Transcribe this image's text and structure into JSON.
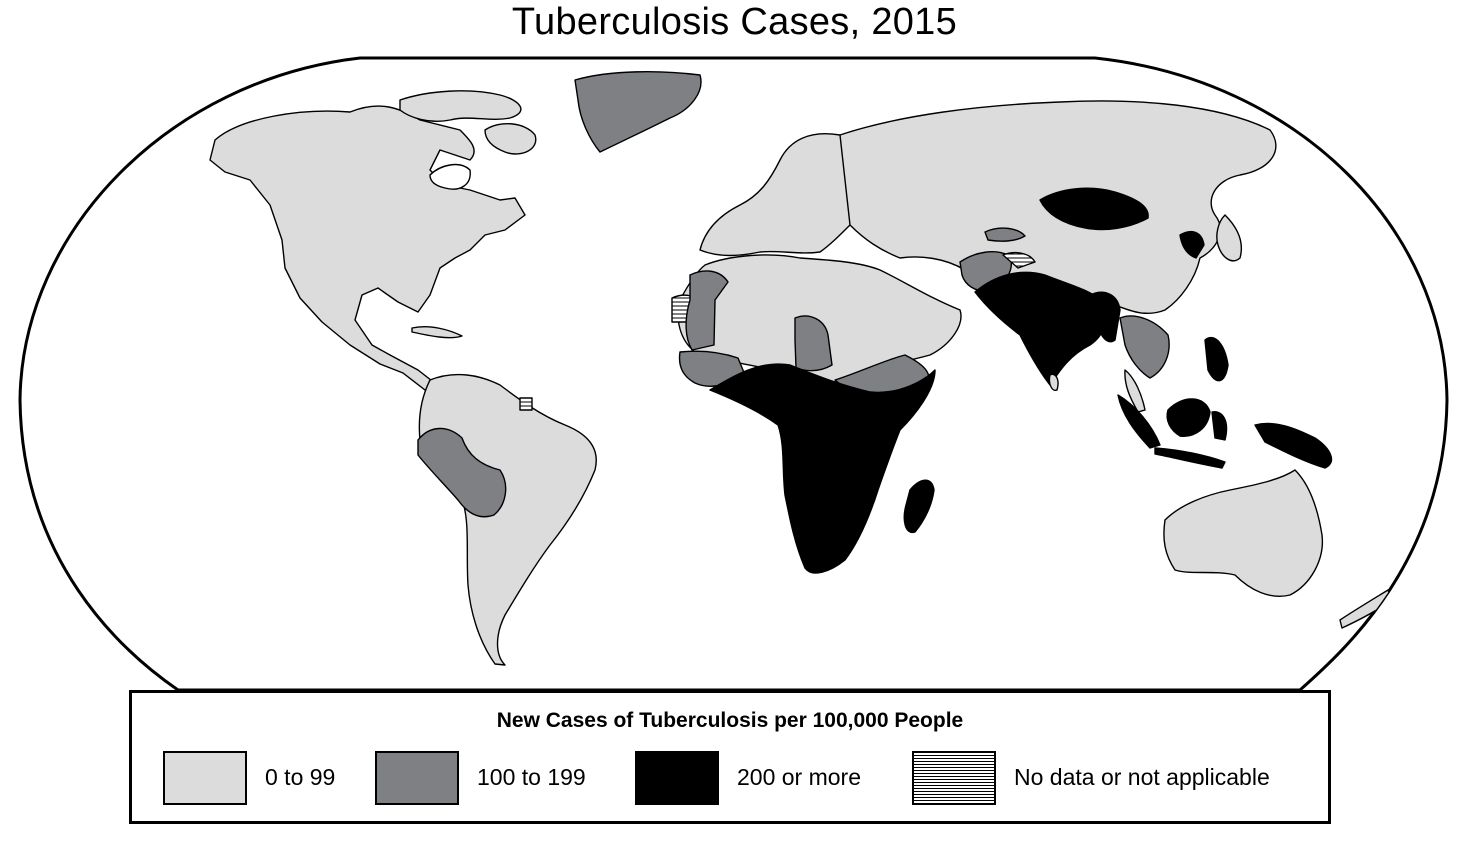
{
  "title": "Tuberculosis Cases, 2015",
  "legend": {
    "title": "New Cases of Tuberculosis per 100,000 People",
    "items": [
      {
        "label": "0 to 99",
        "color": "#dcdcdd",
        "pattern": "solid"
      },
      {
        "label": "100 to 199",
        "color": "#7f8084",
        "pattern": "solid"
      },
      {
        "label": "200 or more",
        "color": "#000000",
        "pattern": "solid"
      },
      {
        "label": "No data or not applicable",
        "color": "#ffffff",
        "pattern": "horizontal-hatch"
      }
    ]
  },
  "colors": {
    "low": "#dcdcdd",
    "mid": "#7f8084",
    "high": "#000000",
    "ocean": "#ffffff",
    "outline": "#000000"
  }
}
